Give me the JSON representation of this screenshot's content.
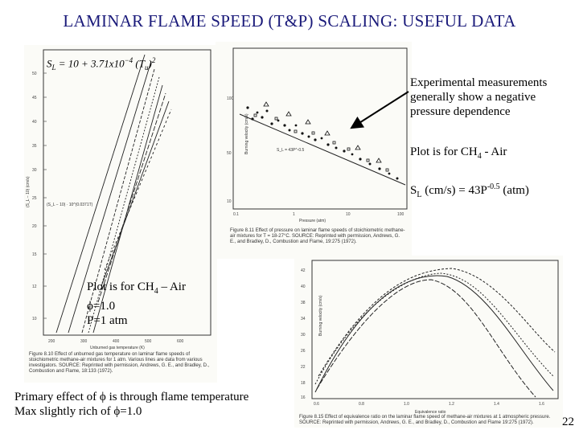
{
  "title": "LAMINAR FLAME SPEED (T&P) SCALING: USEFUL DATA",
  "left_plot": {
    "equation_text": "S_L = 10 + 3.71x10^-4 (T_u)^2",
    "x_axis_label": "Unburned gas temperature (K)",
    "caption": "Figure 8.10  Effect of unburned gas temperature on laminar flame speeds of stoichiometric methane-air mixtures for 1 atm. Various lines are data from various investigators. SOURCE: Reprinted with permission, Andrews, G. E., and Bradley, D., Combustion and Flame, 18:133 (1972)."
  },
  "top_right_plot": {
    "x_axis_label": "Pressure (atm)",
    "y_axis_label": "Burning velocity (cm/s)",
    "caption": "Figure 8.11  Effect of pressure on laminar flame speeds of stoichiometric methane-air mixtures for T = 18-27°C. SOURCE: Reprinted with permission, Andrews, G. E., and Bradley, D., Combustion and Flame, 19:275 (1972)."
  },
  "bottom_right_plot": {
    "x_axis_label": "Equivalence ratio",
    "y_axis_label": "Burning velocity (cm/s)",
    "caption": "Figure 8.15  Effect of equivalence ratio on the laminar flame speed of methane-air mixtures at 1 atmospheric pressure. SOURCE: Reprinted with permission, Andrews, G. E., and Bradley, D., Combustion and Flame 19:275 (1972)."
  },
  "notes": {
    "exp_line1": "Experimental measurements",
    "exp_line2": "generally show a negative",
    "exp_line3": "pressure dependence",
    "plot_for_prefix": "Plot is for CH",
    "plot_for_sub": "4",
    "plot_for_suffix": " - Air",
    "sl_prefix": "S",
    "sl_sub": "L",
    "sl_mid": " (cm/s) = 43P",
    "sl_sup": "-0.5",
    "sl_suffix": " (atm)",
    "left_plot_prefix": "Plot is for CH",
    "left_plot_sub": "4",
    "left_plot_suffix": " – Air",
    "phi_line": "ϕ=1.0",
    "p_line": "P=1 atm",
    "primary_line1": "Primary effect of ϕ is through flame temperature",
    "primary_line2": "Max slightly rich of ϕ=1.0"
  },
  "page_number": "22"
}
